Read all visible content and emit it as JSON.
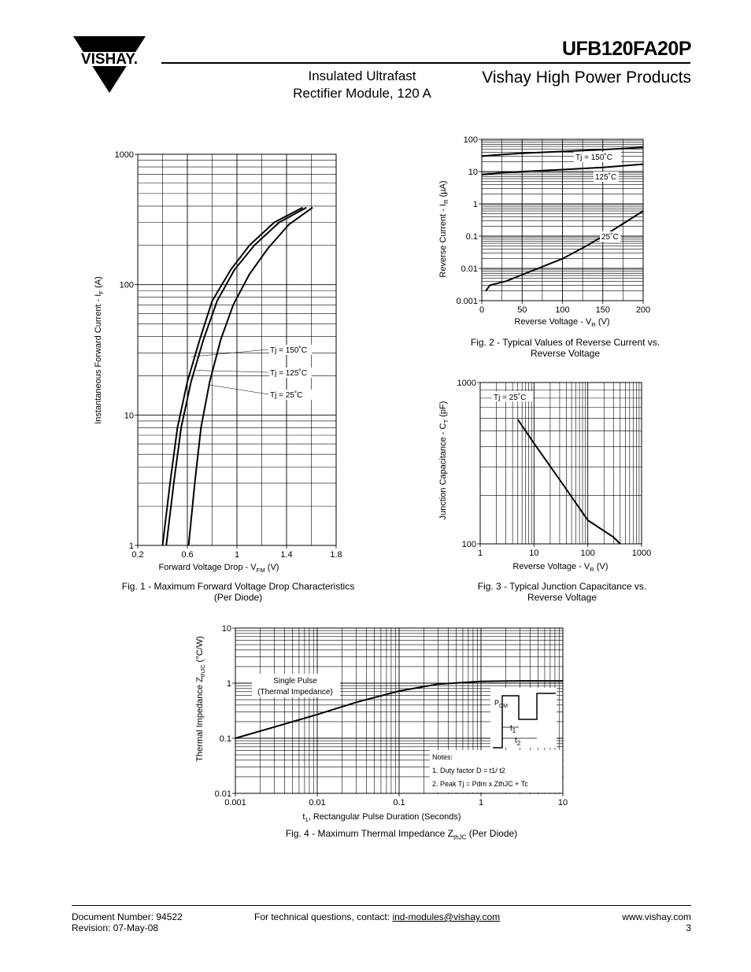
{
  "header": {
    "brand": "VISHAY.",
    "part_number": "UFB120FA20P",
    "subtitle_line1": "Insulated Ultrafast",
    "subtitle_line2": "Rectifier Module, 120 A",
    "division": "Vishay High Power Products"
  },
  "footer": {
    "doc_number": "Document Number: 94522",
    "revision": "Revision: 07-May-08",
    "contact_prefix": "For technical questions, contact: ",
    "contact_email": "ind-modules@vishay.com",
    "website": "www.vishay.com",
    "page": "3"
  },
  "chart_data": [
    {
      "id": "fig1",
      "type": "line",
      "caption_line1": "Fig. 1 - Maximum Forward Voltage Drop Characteristics",
      "caption_line2": "(Per Diode)",
      "xlabel": "Forward Voltage Drop - V",
      "xlabel_sub": "FM",
      "xlabel_unit": " (V)",
      "ylabel": "Instantaneous Forward Current - I",
      "ylabel_sub": "F",
      "ylabel_unit": " (A)",
      "x_scale": "linear",
      "y_scale": "log",
      "xlim": [
        0.2,
        1.8
      ],
      "ylim": [
        1,
        1000
      ],
      "x_ticks": [
        "0.2",
        "0.6",
        "1",
        "1.4",
        "1.8"
      ],
      "y_ticks": [
        "1",
        "10",
        "100",
        "1000"
      ],
      "grid": true,
      "series": [
        {
          "name": "Tj = 150˚C",
          "points": [
            [
              0.4,
              1
            ],
            [
              0.46,
              3
            ],
            [
              0.52,
              8
            ],
            [
              0.6,
              18
            ],
            [
              0.7,
              38
            ],
            [
              0.8,
              75
            ],
            [
              0.95,
              130
            ],
            [
              1.1,
              200
            ],
            [
              1.3,
              300
            ],
            [
              1.53,
              390
            ]
          ]
        },
        {
          "name": "Tj = 125˚C",
          "points": [
            [
              0.43,
              1
            ],
            [
              0.49,
              3
            ],
            [
              0.55,
              8
            ],
            [
              0.63,
              18
            ],
            [
              0.73,
              38
            ],
            [
              0.84,
              75
            ],
            [
              0.98,
              130
            ],
            [
              1.14,
              200
            ],
            [
              1.34,
              300
            ],
            [
              1.56,
              390
            ]
          ]
        },
        {
          "name": "Tj =   25˚C",
          "points": [
            [
              0.61,
              1
            ],
            [
              0.66,
              3
            ],
            [
              0.71,
              8
            ],
            [
              0.78,
              18
            ],
            [
              0.87,
              38
            ],
            [
              0.97,
              70
            ],
            [
              1.1,
              120
            ],
            [
              1.25,
              190
            ],
            [
              1.42,
              290
            ],
            [
              1.61,
              390
            ]
          ]
        }
      ]
    },
    {
      "id": "fig2",
      "type": "line",
      "caption_line1": "Fig. 2 - Typical Values of Reverse Current vs.",
      "caption_line2": "Reverse Voltage",
      "xlabel": "Reverse Voltage - V",
      "xlabel_sub": "R",
      "xlabel_unit": " (V)",
      "ylabel": "Reverse Current - I",
      "ylabel_sub": "R",
      "ylabel_unit": " (µA)",
      "x_scale": "linear",
      "y_scale": "log",
      "xlim": [
        0,
        200
      ],
      "ylim": [
        0.001,
        100
      ],
      "x_ticks": [
        "0",
        "50",
        "100",
        "150",
        "200"
      ],
      "y_ticks": [
        "0.001",
        "0.01",
        "0.1",
        "1",
        "10",
        "100"
      ],
      "grid": true,
      "series": [
        {
          "name": "Tj = 150˚C",
          "points": [
            [
              0,
              30
            ],
            [
              20,
              33
            ],
            [
              50,
              37
            ],
            [
              100,
              42
            ],
            [
              150,
              48
            ],
            [
              200,
              56
            ]
          ]
        },
        {
          "name": "125˚C",
          "points": [
            [
              0,
              8
            ],
            [
              20,
              9
            ],
            [
              50,
              10
            ],
            [
              100,
              11.5
            ],
            [
              150,
              13.5
            ],
            [
              200,
              17
            ]
          ]
        },
        {
          "name": "25˚C",
          "points": [
            [
              5,
              0.002
            ],
            [
              10,
              0.003
            ],
            [
              30,
              0.004
            ],
            [
              60,
              0.008
            ],
            [
              100,
              0.02
            ],
            [
              130,
              0.05
            ],
            [
              160,
              0.14
            ],
            [
              200,
              0.6
            ]
          ]
        }
      ]
    },
    {
      "id": "fig3",
      "type": "line",
      "caption_line1": "Fig. 3 - Typical Junction Capacitance vs.",
      "caption_line2": "Reverse Voltage",
      "xlabel": "Reverse Voltage - V",
      "xlabel_sub": "R",
      "xlabel_unit": " (V)",
      "ylabel": "Junction Capacitance - C",
      "ylabel_sub": "T",
      "ylabel_unit": " (pF)",
      "x_scale": "log",
      "y_scale": "log",
      "xlim": [
        1,
        1000
      ],
      "ylim": [
        100,
        1000
      ],
      "x_ticks": [
        "1",
        "10",
        "100",
        "1000"
      ],
      "y_ticks": [
        "100",
        "1000"
      ],
      "grid": true,
      "series": [
        {
          "name": "Tj = 25˚C",
          "points": [
            [
              5,
              590
            ],
            [
              10,
              420
            ],
            [
              30,
              250
            ],
            [
              100,
              140
            ],
            [
              300,
              110
            ],
            [
              400,
              100
            ]
          ]
        }
      ]
    },
    {
      "id": "fig4",
      "type": "line",
      "caption_main": "Fig. 4 - Maximum Thermal Impedance Z",
      "caption_sub": "thJC",
      "caption_end": " (Per Diode)",
      "xlabel_pre": "t",
      "xlabel_sub": "1",
      "xlabel": ", Rectangular Pulse Duration (Seconds)",
      "ylabel": "Thermal Impedance Z",
      "ylabel_sub": "thJC",
      "ylabel_unit": " (°C/W)",
      "x_scale": "log",
      "y_scale": "log",
      "xlim": [
        0.001,
        10
      ],
      "ylim": [
        0.01,
        10
      ],
      "x_ticks": [
        "0.001",
        "0.01",
        "0.1",
        "1",
        "10"
      ],
      "y_ticks": [
        "0.01",
        "0.1",
        "1",
        "10"
      ],
      "grid": true,
      "series": [
        {
          "name": "Single Pulse (Thermal Impedance)",
          "points": [
            [
              0.001,
              0.1
            ],
            [
              0.003,
              0.16
            ],
            [
              0.01,
              0.27
            ],
            [
              0.03,
              0.45
            ],
            [
              0.1,
              0.72
            ],
            [
              0.3,
              0.96
            ],
            [
              1,
              1.08
            ],
            [
              3,
              1.1
            ],
            [
              10,
              1.1
            ]
          ]
        }
      ],
      "annotations": {
        "single_pulse_1": "Single Pulse",
        "single_pulse_2": "(Thermal Impedance)",
        "pdm": "P",
        "pdm_sub": "DM",
        "t1": "t",
        "t1_sub": "1",
        "t2": "t",
        "t2_sub": "2",
        "notes_title": "Notes:",
        "note1": "1. Duty factor D =  t1/ t2",
        "note2": "2. Peak Tj = Pdm x ZthJC + Tc"
      }
    }
  ]
}
